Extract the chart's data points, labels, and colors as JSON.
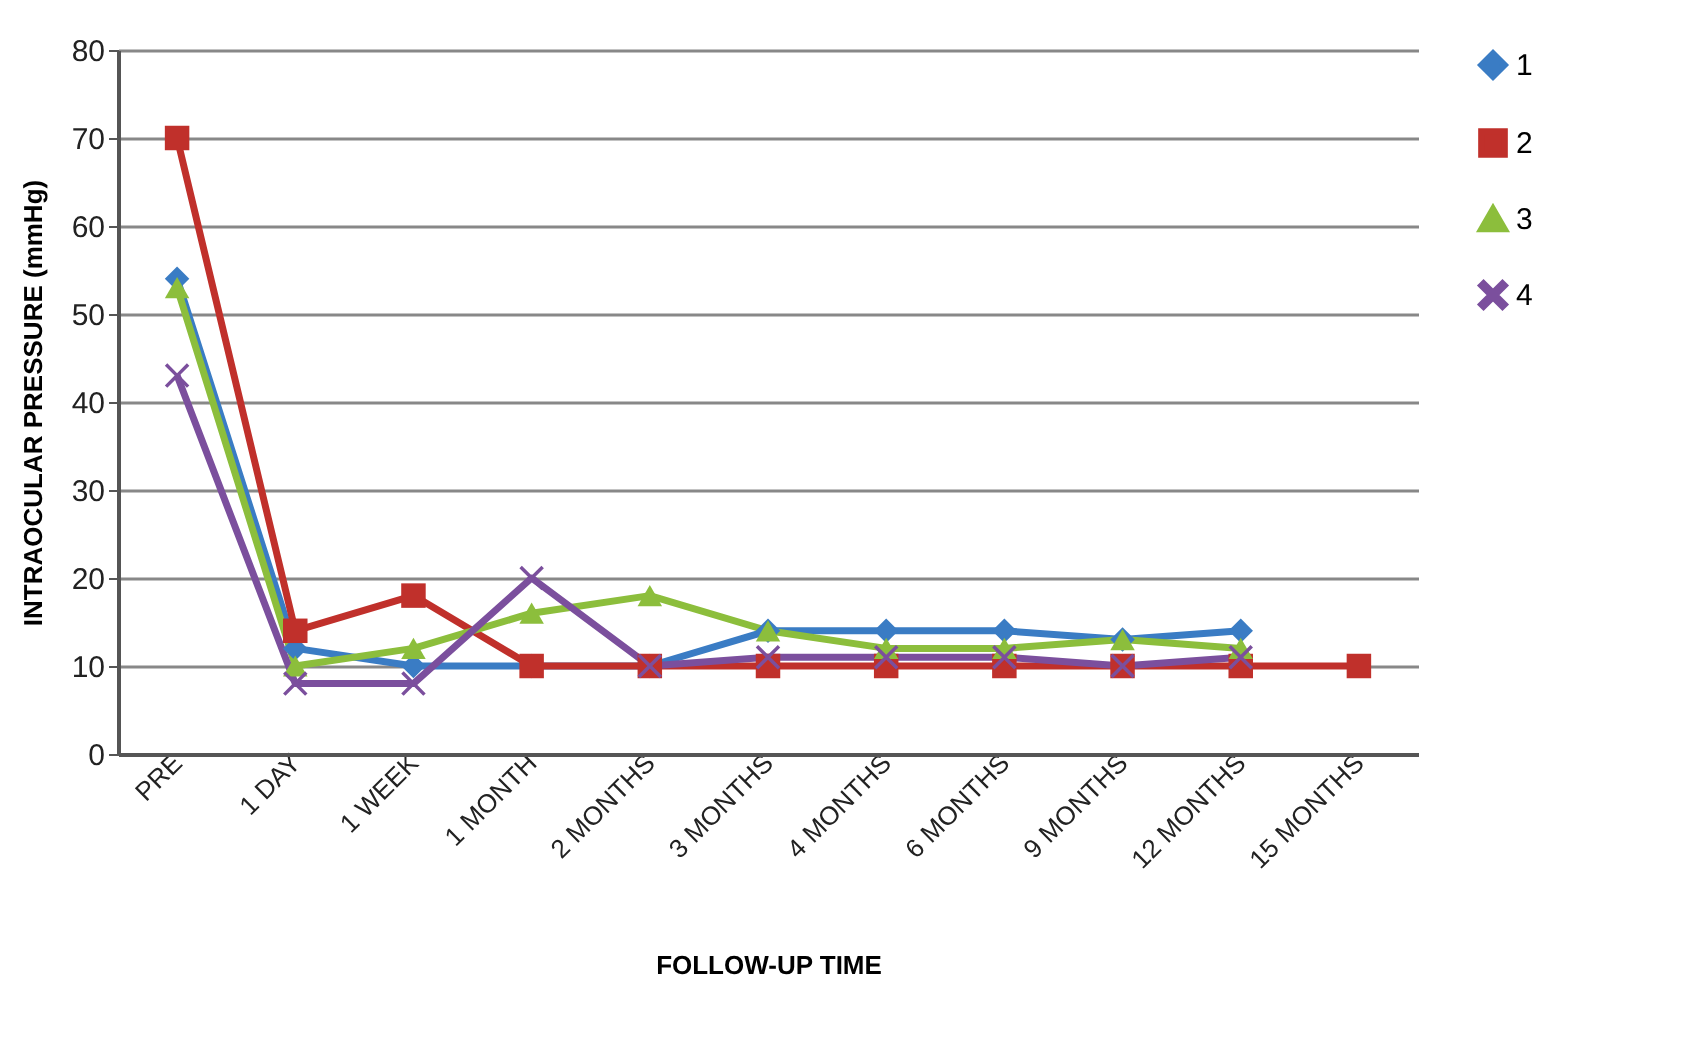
{
  "chart_data": {
    "type": "line",
    "categories": [
      "PRE",
      "1 DAY",
      "1 WEEK",
      "1 MONTH",
      "2 MONTHS",
      "3 MONTHS",
      "4 MONTHS",
      "6 MONTHS",
      "9 MONTHS",
      "12 MONTHS",
      "15 MONTHS"
    ],
    "series": [
      {
        "name": "1",
        "color": "#3a7cc4",
        "marker": "diamond",
        "values": [
          54,
          12,
          10,
          10,
          10,
          14,
          14,
          14,
          13,
          14,
          null
        ]
      },
      {
        "name": "2",
        "color": "#c0302b",
        "marker": "square",
        "values": [
          70,
          14,
          18,
          10,
          10,
          10,
          10,
          10,
          10,
          10,
          10
        ]
      },
      {
        "name": "3",
        "color": "#8cbe3c",
        "marker": "triangle",
        "values": [
          53,
          10,
          12,
          16,
          18,
          14,
          12,
          12,
          13,
          12,
          null
        ]
      },
      {
        "name": "4",
        "color": "#7b4f9d",
        "marker": "cross",
        "values": [
          43,
          8,
          8,
          20,
          10,
          11,
          11,
          11,
          10,
          11,
          null
        ]
      }
    ],
    "xlabel": "FOLLOW-UP TIME",
    "ylabel": "INTRAOCULAR PRESSURE (mmHg)",
    "ylim": [
      0,
      80
    ],
    "yticks": [
      0,
      10,
      20,
      30,
      40,
      50,
      60,
      70,
      80
    ],
    "grid": "y",
    "legend": "right"
  }
}
